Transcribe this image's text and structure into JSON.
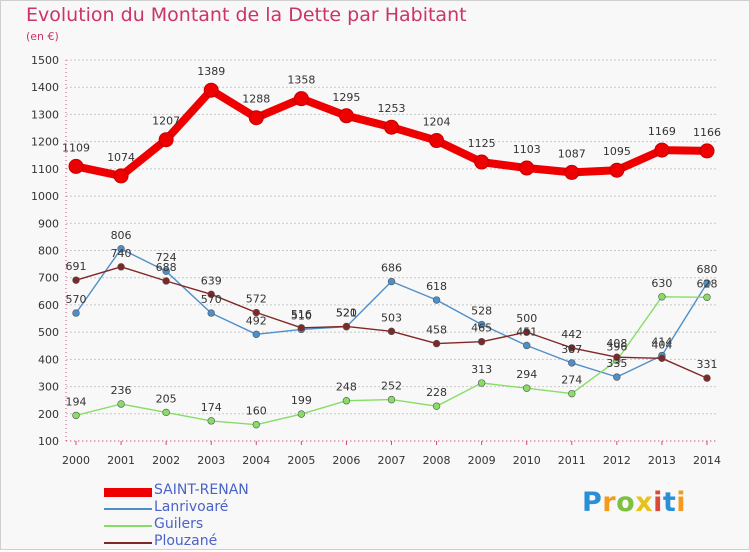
{
  "header": {
    "title": "Evolution du Montant de la Dette par Habitant",
    "subtitle": "(en €)"
  },
  "logo": {
    "text": "Proxiti",
    "colors": [
      "#2a8fd6",
      "#f39a1f",
      "#7fbf3f",
      "#e8c21a",
      "#d84a3a"
    ]
  },
  "chart_data": {
    "type": "line",
    "title": "Evolution du Montant de la Dette par Habitant",
    "ylabel": "(en €)",
    "xlabel": "",
    "x": [
      "2000",
      "2001",
      "2002",
      "2003",
      "2004",
      "2005",
      "2006",
      "2007",
      "2008",
      "2009",
      "2010",
      "2011",
      "2012",
      "2013",
      "2014"
    ],
    "ylim": [
      100,
      1500
    ],
    "yticks": [
      100,
      200,
      300,
      400,
      500,
      600,
      700,
      800,
      900,
      1000,
      1100,
      1200,
      1300,
      1400,
      1500
    ],
    "grid": "horizontal",
    "legend_position": "bottom-left",
    "series": [
      {
        "name": "SAINT-RENAN",
        "color": "#ee0000",
        "values": [
          1109,
          1074,
          1207,
          1389,
          1288,
          1358,
          1295,
          1253,
          1204,
          1125,
          1103,
          1087,
          1095,
          1169,
          1166
        ]
      },
      {
        "name": "Lanrivoaré",
        "color": "#4f8fc8",
        "values": [
          570,
          806,
          724,
          570,
          492,
          510,
          520,
          686,
          618,
          528,
          451,
          387,
          335,
          414,
          680
        ]
      },
      {
        "name": "Guilers",
        "color": "#88dd66",
        "values": [
          194,
          236,
          205,
          174,
          160,
          199,
          248,
          252,
          228,
          313,
          294,
          274,
          396,
          630,
          628
        ]
      },
      {
        "name": "Plouzané",
        "color": "#802828",
        "values": [
          691,
          740,
          688,
          639,
          572,
          516,
          521,
          503,
          458,
          465,
          500,
          442,
          408,
          404,
          331
        ]
      }
    ]
  }
}
